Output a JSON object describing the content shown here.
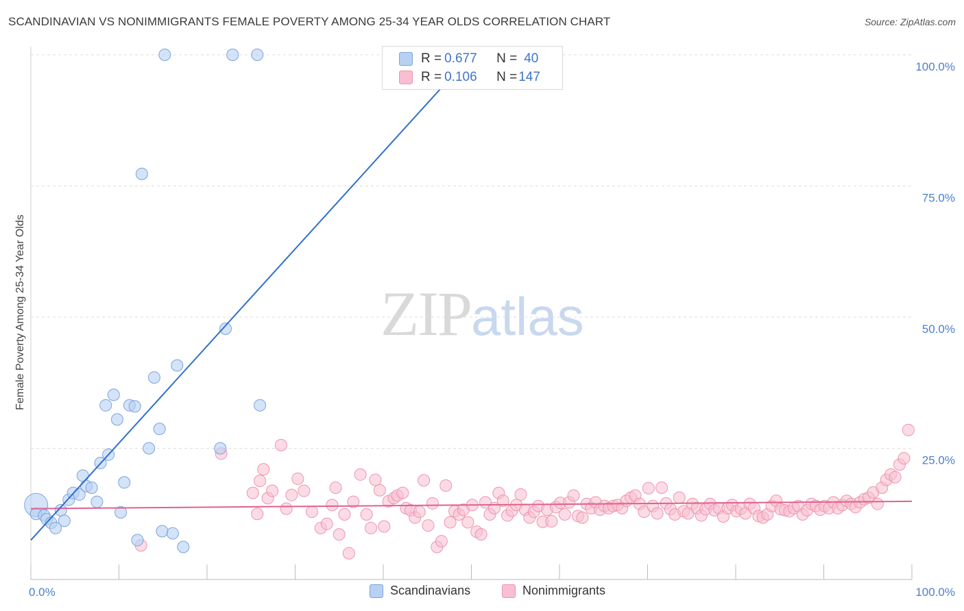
{
  "title": "SCANDINAVIAN VS NONIMMIGRANTS FEMALE POVERTY AMONG 25-34 YEAR OLDS CORRELATION CHART",
  "source": "Source: ZipAtlas.com",
  "watermark": {
    "zip": "ZIP",
    "atlas": "atlas"
  },
  "legend": {
    "rows": [
      {
        "r_label": "R = ",
        "r_value": "0.677",
        "n_label": "N = ",
        "n_value": "40"
      },
      {
        "r_label": "R = ",
        "r_value": "0.106",
        "n_label": "N = ",
        "n_value": "147"
      }
    ]
  },
  "colors": {
    "scandinavians_fill": "#b8d1f3",
    "scandinavians_stroke": "#7aa3dc",
    "scandinavians_line": "#2f6fcc",
    "nonimmigrants_fill": "#f7bfd0",
    "nonimmigrants_stroke": "#ee93b0",
    "nonimmigrants_line": "#e0608f",
    "tick_label": "#4a7fd0",
    "grid": "#dddddd"
  },
  "chart_data": {
    "type": "scatter",
    "title": "SCANDINAVIAN VS NONIMMIGRANTS FEMALE POVERTY AMONG 25-34 YEAR OLDS CORRELATION CHART",
    "xlabel": "",
    "ylabel": "Female Poverty Among 25-34 Year Olds",
    "xlim": [
      0,
      100
    ],
    "ylim": [
      0,
      100
    ],
    "x_tick_labels": [
      "0.0%",
      "100.0%"
    ],
    "y_tick_labels": [
      "25.0%",
      "50.0%",
      "75.0%",
      "100.0%"
    ],
    "y_ticks": [
      25,
      50,
      75,
      100
    ],
    "grid": "horizontal dashed",
    "legend_position": "bottom",
    "series": [
      {
        "name": "Scandinavians",
        "r": 0.677,
        "n": 40,
        "trend": {
          "x": [
            0,
            50
          ],
          "y": [
            7.5,
            100
          ]
        },
        "points": [
          [
            0.6,
            14.2,
            "big"
          ],
          [
            0.6,
            12.5
          ],
          [
            1.5,
            12.2
          ],
          [
            1.8,
            11.5
          ],
          [
            2.3,
            10.8
          ],
          [
            2.8,
            9.8
          ],
          [
            3.4,
            13.2
          ],
          [
            3.8,
            11.2
          ],
          [
            4.3,
            15.2
          ],
          [
            4.8,
            16.5
          ],
          [
            5.5,
            16.2
          ],
          [
            5.9,
            19.8
          ],
          [
            6.3,
            17.8
          ],
          [
            6.9,
            17.5
          ],
          [
            7.5,
            14.8
          ],
          [
            7.9,
            22.2
          ],
          [
            8.5,
            33.2
          ],
          [
            8.8,
            23.8
          ],
          [
            9.4,
            35.2
          ],
          [
            9.8,
            30.5
          ],
          [
            10.2,
            12.8
          ],
          [
            10.6,
            18.5
          ],
          [
            11.2,
            33.2
          ],
          [
            11.8,
            33.0
          ],
          [
            12.1,
            7.5
          ],
          [
            12.6,
            77.3
          ],
          [
            13.4,
            25.0
          ],
          [
            14.0,
            38.5
          ],
          [
            14.6,
            28.7
          ],
          [
            14.9,
            9.2
          ],
          [
            15.2,
            100.0
          ],
          [
            16.1,
            8.8
          ],
          [
            16.6,
            40.8
          ],
          [
            17.3,
            6.2
          ],
          [
            21.5,
            25.0
          ],
          [
            22.1,
            47.8
          ],
          [
            22.9,
            100.0
          ],
          [
            25.7,
            100.0
          ],
          [
            26.0,
            33.2
          ],
          [
            51.0,
            100.0
          ]
        ]
      },
      {
        "name": "Nonimmigrants",
        "r": 0.106,
        "n": 147,
        "trend": {
          "x": [
            0,
            100
          ],
          "y": [
            13.5,
            14.9
          ]
        },
        "points": [
          [
            12.5,
            6.5
          ],
          [
            21.6,
            24.0
          ],
          [
            25.2,
            16.5
          ],
          [
            25.7,
            12.5
          ],
          [
            26.0,
            18.8
          ],
          [
            26.4,
            21.0
          ],
          [
            26.9,
            15.5
          ],
          [
            27.4,
            16.9
          ],
          [
            28.4,
            25.6
          ],
          [
            29.0,
            13.5
          ],
          [
            29.6,
            16.1
          ],
          [
            30.3,
            19.2
          ],
          [
            31.0,
            16.9
          ],
          [
            31.9,
            12.9
          ],
          [
            32.9,
            9.8
          ],
          [
            33.6,
            10.6
          ],
          [
            34.2,
            14.2
          ],
          [
            34.6,
            17.5
          ],
          [
            35.0,
            8.6
          ],
          [
            35.6,
            12.4
          ],
          [
            36.1,
            5.0
          ],
          [
            36.6,
            14.8
          ],
          [
            37.4,
            20.0
          ],
          [
            38.1,
            12.4
          ],
          [
            38.6,
            9.8
          ],
          [
            39.1,
            19.0
          ],
          [
            39.6,
            17.0
          ],
          [
            40.1,
            10.1
          ],
          [
            40.6,
            14.9
          ],
          [
            41.2,
            15.5
          ],
          [
            41.6,
            16.0
          ],
          [
            42.2,
            16.5
          ],
          [
            42.6,
            13.6
          ],
          [
            43.1,
            13.2
          ],
          [
            43.6,
            11.8
          ],
          [
            44.1,
            12.9
          ],
          [
            44.6,
            18.9
          ],
          [
            45.1,
            10.3
          ],
          [
            45.6,
            14.5
          ],
          [
            46.1,
            6.2
          ],
          [
            46.6,
            7.3
          ],
          [
            47.1,
            17.9
          ],
          [
            47.6,
            10.9
          ],
          [
            48.1,
            13.0
          ],
          [
            48.6,
            12.4
          ],
          [
            49.1,
            13.3
          ],
          [
            49.6,
            10.9
          ],
          [
            50.1,
            14.2
          ],
          [
            50.6,
            9.1
          ],
          [
            51.1,
            8.6
          ],
          [
            51.6,
            14.7
          ],
          [
            52.1,
            12.4
          ],
          [
            52.6,
            13.6
          ],
          [
            53.1,
            16.5
          ],
          [
            53.6,
            15.0
          ],
          [
            54.1,
            12.2
          ],
          [
            54.6,
            13.1
          ],
          [
            55.1,
            14.2
          ],
          [
            55.6,
            16.2
          ],
          [
            56.1,
            13.3
          ],
          [
            56.6,
            11.8
          ],
          [
            57.1,
            12.9
          ],
          [
            57.6,
            14.0
          ],
          [
            58.1,
            11.0
          ],
          [
            58.6,
            13.3
          ],
          [
            59.1,
            11.1
          ],
          [
            59.6,
            13.8
          ],
          [
            60.1,
            14.6
          ],
          [
            60.6,
            12.4
          ],
          [
            61.1,
            14.7
          ],
          [
            61.6,
            16.0
          ],
          [
            62.1,
            12.1
          ],
          [
            62.6,
            11.8
          ],
          [
            63.1,
            14.4
          ],
          [
            63.6,
            13.6
          ],
          [
            64.1,
            14.7
          ],
          [
            64.6,
            13.3
          ],
          [
            65.1,
            14.0
          ],
          [
            65.6,
            13.6
          ],
          [
            66.1,
            14.0
          ],
          [
            66.6,
            14.2
          ],
          [
            67.1,
            13.6
          ],
          [
            67.6,
            15.0
          ],
          [
            68.1,
            15.6
          ],
          [
            68.6,
            16.0
          ],
          [
            69.1,
            14.4
          ],
          [
            69.6,
            12.9
          ],
          [
            70.1,
            17.4
          ],
          [
            70.6,
            14.0
          ],
          [
            71.1,
            12.6
          ],
          [
            71.6,
            17.5
          ],
          [
            72.1,
            14.5
          ],
          [
            72.6,
            13.4
          ],
          [
            73.1,
            12.4
          ],
          [
            73.6,
            15.6
          ],
          [
            74.1,
            13.0
          ],
          [
            74.6,
            12.6
          ],
          [
            75.1,
            14.4
          ],
          [
            75.6,
            13.6
          ],
          [
            76.1,
            12.2
          ],
          [
            76.6,
            13.4
          ],
          [
            77.1,
            14.4
          ],
          [
            77.6,
            13.2
          ],
          [
            78.1,
            13.6
          ],
          [
            78.6,
            12.0
          ],
          [
            79.1,
            13.6
          ],
          [
            79.6,
            14.2
          ],
          [
            80.1,
            13.0
          ],
          [
            80.6,
            13.5
          ],
          [
            81.1,
            12.6
          ],
          [
            81.6,
            14.4
          ],
          [
            82.1,
            13.6
          ],
          [
            82.6,
            12.1
          ],
          [
            83.1,
            11.8
          ],
          [
            83.6,
            12.4
          ],
          [
            84.1,
            14.0
          ],
          [
            84.6,
            15.0
          ],
          [
            85.1,
            13.4
          ],
          [
            85.6,
            13.2
          ],
          [
            86.1,
            13.0
          ],
          [
            86.6,
            13.6
          ],
          [
            87.1,
            14.0
          ],
          [
            87.6,
            12.4
          ],
          [
            88.1,
            13.2
          ],
          [
            88.6,
            14.4
          ],
          [
            89.1,
            14.0
          ],
          [
            89.6,
            13.3
          ],
          [
            90.1,
            14.0
          ],
          [
            90.6,
            13.6
          ],
          [
            91.1,
            14.7
          ],
          [
            91.6,
            13.6
          ],
          [
            92.1,
            14.2
          ],
          [
            92.6,
            15.0
          ],
          [
            93.1,
            14.4
          ],
          [
            93.6,
            13.8
          ],
          [
            94.1,
            14.7
          ],
          [
            94.6,
            15.3
          ],
          [
            95.1,
            15.6
          ],
          [
            95.6,
            16.6
          ],
          [
            96.1,
            14.4
          ],
          [
            96.6,
            17.5
          ],
          [
            97.1,
            19.0
          ],
          [
            97.6,
            20.0
          ],
          [
            98.1,
            19.5
          ],
          [
            98.6,
            21.9
          ],
          [
            99.1,
            23.1
          ],
          [
            99.6,
            28.5
          ]
        ]
      }
    ]
  },
  "bottom_legend": [
    "Scandinavians",
    "Nonimmigrants"
  ]
}
